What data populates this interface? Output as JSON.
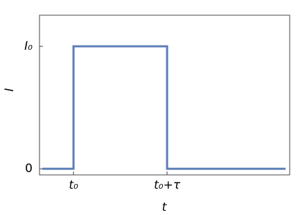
{
  "chart_data": {
    "type": "line",
    "xlabel": "t",
    "ylabel": "I",
    "x": [
      0,
      1,
      1,
      4,
      4,
      7.8
    ],
    "series": [
      {
        "color": "#5b7db8",
        "values": [
          0,
          0,
          1,
          1,
          0,
          0
        ]
      }
    ],
    "xlim": [
      -0.09,
      7.93
    ],
    "ylim": [
      -0.05,
      1.254
    ],
    "xticks": [
      {
        "value": 1,
        "label": "t₀"
      },
      {
        "value": 4,
        "label": "t₀+τ"
      }
    ],
    "yticks": [
      {
        "value": 0,
        "label": "0"
      },
      {
        "value": 1,
        "label": "I₀"
      }
    ]
  }
}
